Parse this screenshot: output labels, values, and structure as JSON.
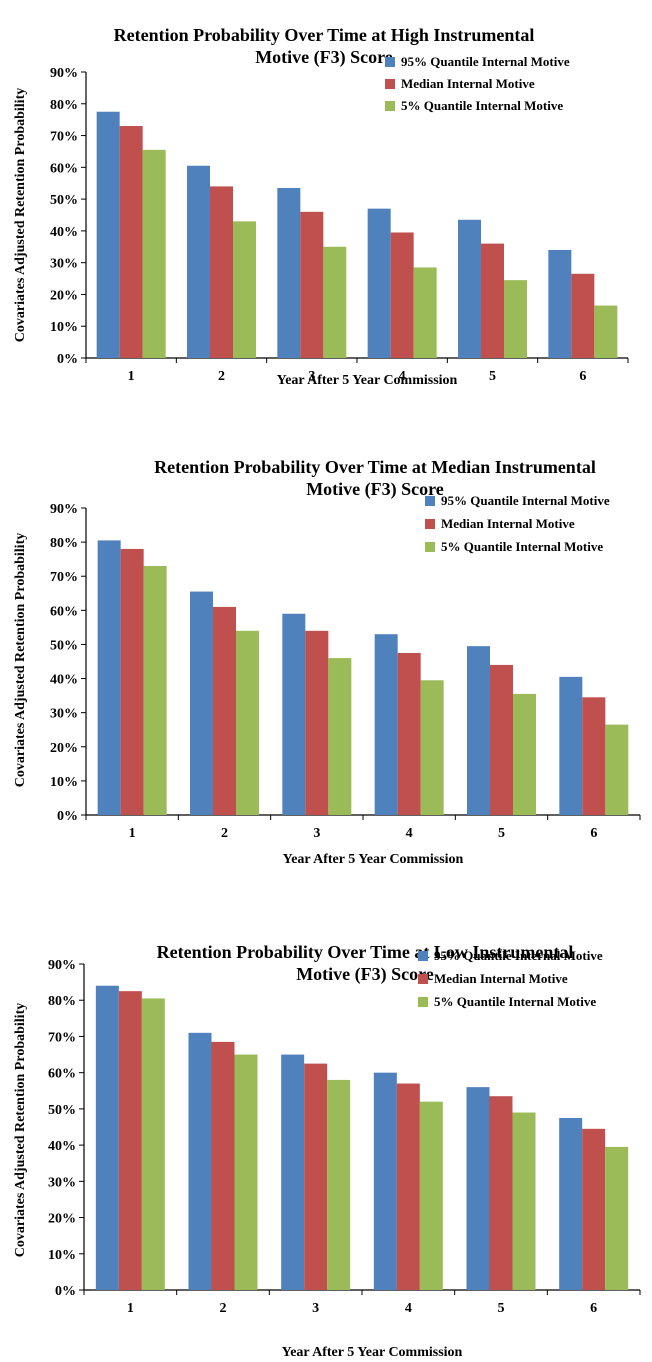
{
  "chart_data": [
    {
      "type": "bar",
      "title": [
        "Retention Probability Over Time at High Instrumental",
        "Motive (F3) Score"
      ],
      "xlabel": "Year After 5 Year Commission",
      "ylabel": "Covariates Adjusted Retention Probability",
      "ylim": [
        0,
        90
      ],
      "yticks": [
        "0%",
        "10%",
        "20%",
        "30%",
        "40%",
        "50%",
        "60%",
        "70%",
        "80%",
        "90%"
      ],
      "categories": [
        "1",
        "2",
        "3",
        "4",
        "5",
        "6"
      ],
      "legend_position": "top-right",
      "grid": false,
      "series": [
        {
          "name": "95% Quantile Internal Motive",
          "color": "#4F81BD",
          "values": [
            77.5,
            60.5,
            53.5,
            47,
            43.5,
            34
          ]
        },
        {
          "name": "Median Internal Motive",
          "color": "#C0504D",
          "values": [
            73,
            54,
            46,
            39.5,
            36,
            26.5
          ]
        },
        {
          "name": "5% Quantile Internal Motive",
          "color": "#9BBB59",
          "values": [
            65.5,
            43,
            35,
            28.5,
            24.5,
            16.5
          ]
        }
      ]
    },
    {
      "type": "bar",
      "title": [
        "Retention Probability Over Time at Median Instrumental",
        "Motive (F3) Score"
      ],
      "xlabel": "Year After 5 Year Commission",
      "ylabel": "Covariates Adjusted Retention Probability",
      "ylim": [
        0,
        90
      ],
      "yticks": [
        "0%",
        "10%",
        "20%",
        "30%",
        "40%",
        "50%",
        "60%",
        "70%",
        "80%",
        "90%"
      ],
      "categories": [
        "1",
        "2",
        "3",
        "4",
        "5",
        "6"
      ],
      "legend_position": "top-right",
      "grid": false,
      "series": [
        {
          "name": "95% Quantile Internal Motive",
          "color": "#4F81BD",
          "values": [
            80.5,
            65.5,
            59,
            53,
            49.5,
            40.5
          ]
        },
        {
          "name": "Median Internal Motive",
          "color": "#C0504D",
          "values": [
            78,
            61,
            54,
            47.5,
            44,
            34.5
          ]
        },
        {
          "name": "5% Quantile Internal Motive",
          "color": "#9BBB59",
          "values": [
            73,
            54,
            46,
            39.5,
            35.5,
            26.5
          ]
        }
      ]
    },
    {
      "type": "bar",
      "title": [
        "Retention Probability Over Time at Low Instrumental",
        "Motive (F3) Score"
      ],
      "xlabel": "Year After 5 Year Commission",
      "ylabel": "Covariates Adjusted Retention Probability",
      "ylim": [
        0,
        90
      ],
      "yticks": [
        "0%",
        "10%",
        "20%",
        "30%",
        "40%",
        "50%",
        "60%",
        "70%",
        "80%",
        "90%"
      ],
      "categories": [
        "1",
        "2",
        "3",
        "4",
        "5",
        "6"
      ],
      "legend_position": "top-right",
      "grid": false,
      "series": [
        {
          "name": "95% Quantile Internal Motive",
          "color": "#4F81BD",
          "values": [
            84,
            71,
            65,
            60,
            56,
            47.5
          ]
        },
        {
          "name": "Median Internal Motive",
          "color": "#C0504D",
          "values": [
            82.5,
            68.5,
            62.5,
            57,
            53.5,
            44.5
          ]
        },
        {
          "name": "5% Quantile Internal Motive",
          "color": "#9BBB59",
          "values": [
            80.5,
            65,
            58,
            52,
            49,
            39.5
          ]
        }
      ]
    }
  ]
}
